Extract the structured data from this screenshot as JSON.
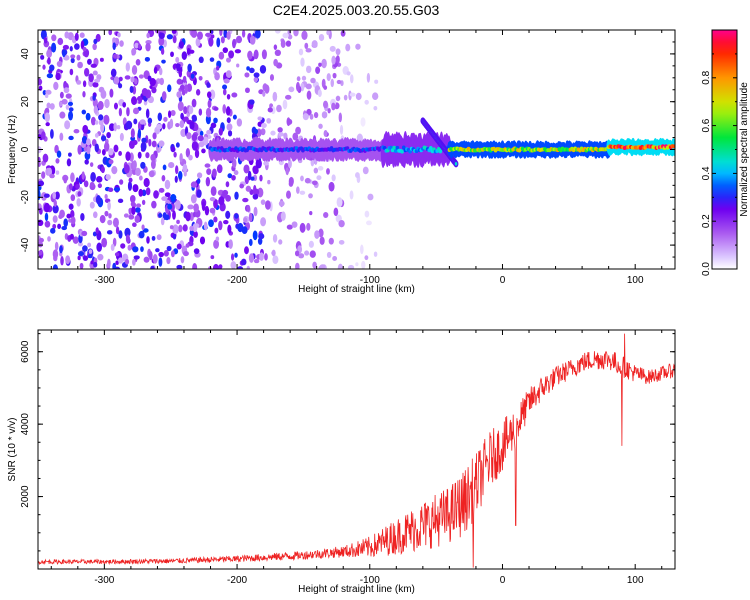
{
  "title": "C2E4.2025.003.20.55.G03",
  "colors": {
    "snr_line": "#ee2222",
    "axis": "#000000"
  },
  "chart_data": [
    {
      "type": "heatmap",
      "xlabel": "Height of straight line (km)",
      "ylabel": "Frequency (Hz)",
      "xlim": [
        -350,
        130
      ],
      "ylim": [
        -50,
        50
      ],
      "xticks": [
        -300,
        -200,
        -100,
        0,
        100
      ],
      "xtick_labels": [
        "-300",
        "-200",
        "-100",
        "0",
        "100"
      ],
      "yticks": [
        -40,
        -20,
        0,
        20,
        40
      ],
      "ytick_labels": [
        "-40",
        "-20",
        "0",
        "20",
        "40"
      ],
      "grid": false,
      "colorbar": {
        "label": "Normalized spectral amplitude",
        "range": [
          0,
          1
        ],
        "ticks": [
          0.0,
          0.2,
          0.4,
          0.6,
          0.8
        ],
        "tick_labels": [
          "0.0",
          "0.2",
          "0.4",
          "0.6",
          "0.8"
        ],
        "colormap": "rainbow"
      },
      "features": [
        {
          "kind": "noise",
          "x_range": [
            -350,
            -180
          ],
          "y_range": [
            -50,
            50
          ],
          "amplitude": 0.22,
          "density": 0.6
        },
        {
          "kind": "noise",
          "x_range": [
            -180,
            -120
          ],
          "y_range": [
            -50,
            50
          ],
          "amplitude": 0.12,
          "density": 0.35
        },
        {
          "kind": "noise",
          "x_range": [
            -120,
            -95
          ],
          "y_range": [
            -50,
            50
          ],
          "amplitude": 0.06,
          "density": 0.15
        },
        {
          "kind": "ridge",
          "x_range": [
            -220,
            -90
          ],
          "center_hz": 0,
          "width_hz": 4,
          "amplitude": 0.35
        },
        {
          "kind": "ridge",
          "x_range": [
            -90,
            -40
          ],
          "center_hz": 0,
          "width_hz": 6,
          "amplitude": 0.45
        },
        {
          "kind": "branch",
          "x_range": [
            -60,
            -35
          ],
          "y_from": 12,
          "y_to": -6,
          "amplitude": 0.45
        },
        {
          "kind": "ridge",
          "x_range": [
            -40,
            80
          ],
          "center_hz": 0,
          "width_hz": 3,
          "amplitude": 0.75
        },
        {
          "kind": "ridge",
          "x_range": [
            80,
            130
          ],
          "center_hz": 1,
          "width_hz": 3,
          "amplitude": 0.95
        }
      ]
    },
    {
      "type": "line",
      "xlabel": "Height of straight line (km)",
      "ylabel": "SNR (10 * v/v)",
      "xlim": [
        -350,
        130
      ],
      "ylim": [
        0,
        6600
      ],
      "xticks": [
        -300,
        -200,
        -100,
        0,
        100
      ],
      "xtick_labels": [
        "-300",
        "-200",
        "-100",
        "0",
        "100"
      ],
      "yticks": [
        2000,
        4000,
        6000
      ],
      "ytick_labels": [
        "2000",
        "4000",
        "6000"
      ],
      "grid": false,
      "series": [
        {
          "color": "#ee2222",
          "x": [
            -350,
            -300,
            -250,
            -200,
            -150,
            -120,
            -100,
            -80,
            -60,
            -40,
            -30,
            -20,
            -10,
            0,
            10,
            20,
            30,
            40,
            50,
            60,
            70,
            80,
            90,
            100,
            110,
            120,
            130
          ],
          "y": [
            200,
            200,
            220,
            280,
            380,
            480,
            600,
            900,
            1200,
            1500,
            1800,
            2300,
            3000,
            3400,
            3900,
            4600,
            5000,
            5300,
            5500,
            5700,
            5800,
            5800,
            5600,
            5400,
            5300,
            5400,
            5500
          ],
          "noise_amplitude": [
            60,
            60,
            70,
            90,
            120,
            160,
            300,
            500,
            700,
            800,
            900,
            900,
            800,
            700,
            600,
            400,
            350,
            300,
            280,
            280,
            300,
            300,
            300,
            250,
            200,
            200,
            200
          ],
          "spikes": [
            {
              "x": -22,
              "y": 40
            },
            {
              "x": 10,
              "y": 1200
            },
            {
              "x": 90,
              "y": 3400
            },
            {
              "x": 92,
              "y": 6500
            }
          ]
        }
      ]
    }
  ]
}
